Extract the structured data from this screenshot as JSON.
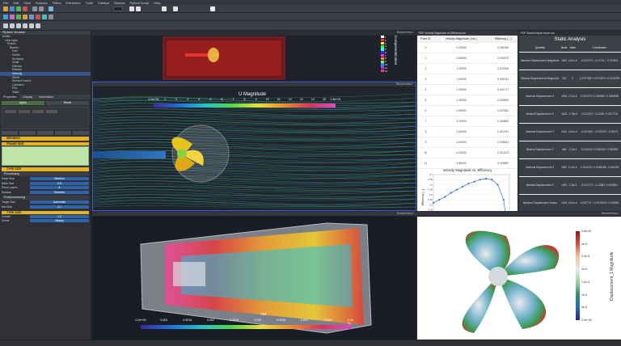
{
  "menu": [
    "File",
    "Edit",
    "View",
    "Sources",
    "Filters",
    "Extractors",
    "Tools",
    "Catalyst",
    "Macros",
    "Python Script",
    "Help"
  ],
  "pipeline": {
    "title": "Pipeline Browser",
    "items": [
      "builtin:",
      "rotor.cgns",
      "Rotors",
      "Blades",
      "Hub",
      "Solids",
      "Surfaces",
      "Shaft",
      "Diffuser",
      "Results",
      "Velocity",
      "Slice1",
      "StreamTracer1",
      "Cylinder1",
      "Plot",
      "Static"
    ]
  },
  "properties": {
    "tabs": [
      "Properties",
      "Display",
      "Information"
    ],
    "sections": {
      "meshing": "MESHING",
      "frame": "FRAME SIZE",
      "type": "TYPE SIZE",
      "processing": "Processing",
      "postprocessing": "Postprocessing",
      "other": "TYPE SIZE"
    },
    "fields": [
      {
        "label": "Mesh Size",
        "value": "Medium"
      },
      {
        "label": "Base Size",
        "value": "0.5"
      },
      {
        "label": "Prism Layers",
        "value": "8"
      },
      {
        "label": "Surface",
        "value": "Remesh"
      },
      {
        "label": "Target Size",
        "value": "Automatic"
      },
      {
        "label": "Min Size",
        "value": "0.1"
      },
      {
        "label": "Growth",
        "value": "1.2"
      },
      {
        "label": "Solver",
        "value": "Steady"
      }
    ],
    "apply_label": "Apply",
    "reset_label": "Reset"
  },
  "view1": {
    "legend_labels": [
      "ComponentColors",
      "1",
      "2",
      "3",
      "4",
      "5",
      "6",
      "7",
      "8",
      "9",
      "10",
      "11",
      "12"
    ]
  },
  "view2": {
    "title": "U Magnitude",
    "ticks": [
      "0.0e+00",
      "1",
      "2",
      "3",
      "4",
      "5",
      "6",
      "7",
      "8",
      "9",
      "10",
      "11",
      "12",
      "13",
      "14",
      "15",
      "1.6e+01"
    ]
  },
  "view3": {
    "title": "nut",
    "ticks": [
      "0.0e+00",
      "0.001",
      "0.0015",
      "0.002",
      "0.0025",
      "0.003",
      "0.0035",
      "0.004",
      "0.0045",
      "5.3e-03"
    ]
  },
  "view4": {
    "title": "Displacement_1 Magnitude",
    "ticks": [
      "3.8e-05",
      "3e-5",
      "2.5e-5",
      "2e-5",
      "1.5e-5",
      "1e-5",
      "5e-6",
      "0.0e+00"
    ]
  },
  "table": {
    "title": "Velocity Magnitude vs Efficiency",
    "headers": [
      "Point ID",
      "Velocity Magnitude ( m/s )",
      "Efficiency ( - )"
    ],
    "rows": [
      [
        "0",
        "0.40000",
        "0.281155"
      ],
      [
        "1",
        "0.80000",
        "0.331873"
      ],
      [
        "2",
        "1.20000",
        "0.371826"
      ],
      [
        "3",
        "1.60000",
        "0.401031"
      ],
      [
        "4",
        "2.00000",
        "0.421717"
      ],
      [
        "5",
        "2.40000",
        "0.433902"
      ],
      [
        "6",
        "2.80000",
        "0.437581"
      ],
      [
        "7",
        "3.20000",
        "0.430854"
      ],
      [
        "8",
        "3.60000",
        "0.412761"
      ],
      [
        "9",
        "4.00000",
        "0.378641"
      ],
      [
        "10",
        "4.40000",
        "0.314112"
      ],
      [
        "11",
        "4.80000",
        "0.119982"
      ]
    ]
  },
  "chart_data": {
    "type": "line",
    "title": "Velocity Magnitude  vs. Efficiency",
    "xlabel": "Velocity Magnitude  [ m/s ]",
    "ylabel": "Efficiency [ - ]",
    "x": [
      1.0,
      1.5,
      2.0,
      2.5,
      3.0,
      3.5,
      4.0,
      4.5,
      5.0,
      5.5,
      6.0,
      6.5,
      7.0,
      7.2
    ],
    "y": [
      0.42,
      0.45,
      0.48,
      0.52,
      0.55,
      0.58,
      0.61,
      0.63,
      0.65,
      0.66,
      0.65,
      0.6,
      0.45,
      0.28
    ],
    "xlim": [
      1.0,
      7.5
    ],
    "ylim": [
      0.25,
      0.7
    ],
    "xticks": [
      "1.0",
      "1.5",
      "2.0",
      "2.5",
      "3.0",
      "3.5",
      "4.0",
      "4.5",
      "5.0",
      "5.5",
      "6.0",
      "6.5",
      "7.0",
      "7.5"
    ],
    "yticks": [
      "0.7",
      "0.65",
      "0.6",
      "0.55",
      "0.5",
      "0.45",
      "0.4",
      "0.35",
      "0.3",
      "0.25"
    ]
  },
  "static": {
    "title": "Static Analysis",
    "headers": [
      "Quantity",
      "Node",
      "Value",
      "Coordinates"
    ],
    "rows": [
      {
        "q": "Maximal Displacement Magnitude",
        "node": "1557",
        "val": "4.51e-5",
        "coord": "-0.012273 / -0.12731 / -0.012811"
      },
      {
        "q": "Minimal Displacement Magnitude",
        "node": "302",
        "val": "0",
        "coord": "-0.037788 / 0.0273313 / 0.0115755"
      },
      {
        "q": "Maximal Displacement X",
        "node": "1694",
        "val": "2.21e-5",
        "coord": "-0.037479 / 0.049989 / 0.0069969"
      },
      {
        "q": "Minimal Displacement X",
        "node": "1623",
        "val": "-1.76e-5",
        "coord": "-0.012702 / -0.1228 / 0.0117716"
      },
      {
        "q": "Maximal Displacement Y",
        "node": "3412",
        "val": "4.51e-5",
        "coord": "-0.037049 / -0.023479 / -0.20071"
      },
      {
        "q": "Minimal Displacement Y",
        "node": "668",
        "val": "-2.3e-5",
        "coord": "-0.014002 / 0.050000 / 0.052893"
      },
      {
        "q": "Maximal Displacement Z",
        "node": "2587",
        "val": "3.14e-5",
        "coord": "-0.012029 / 0.0046158 / 0.034493"
      },
      {
        "q": "Minimal Displacement Z",
        "node": "1467",
        "val": "-2.8e-5",
        "coord": "-0.013772 / -0.12881 / 0.009801"
      },
      {
        "q": "Maximal Displacement Scalar",
        "node": "1024",
        "val": "4.51e-5",
        "coord": "-0.022774 / -0.0076005 / 0.026991"
      }
    ]
  },
  "panel_headers": {
    "view1": "RenderView1",
    "view2": "RenderView2",
    "table": "PDF Velocity Magnitude vs Efficiency.csv",
    "static": "PDF StaticAnalysis report.csv",
    "view3": "RenderView3",
    "view4": "RenderView4"
  },
  "colors": {
    "accent": "#e6b323",
    "blue": "#2f64a8",
    "panel": "#2f3137",
    "viewbg": "#1a1d25"
  }
}
